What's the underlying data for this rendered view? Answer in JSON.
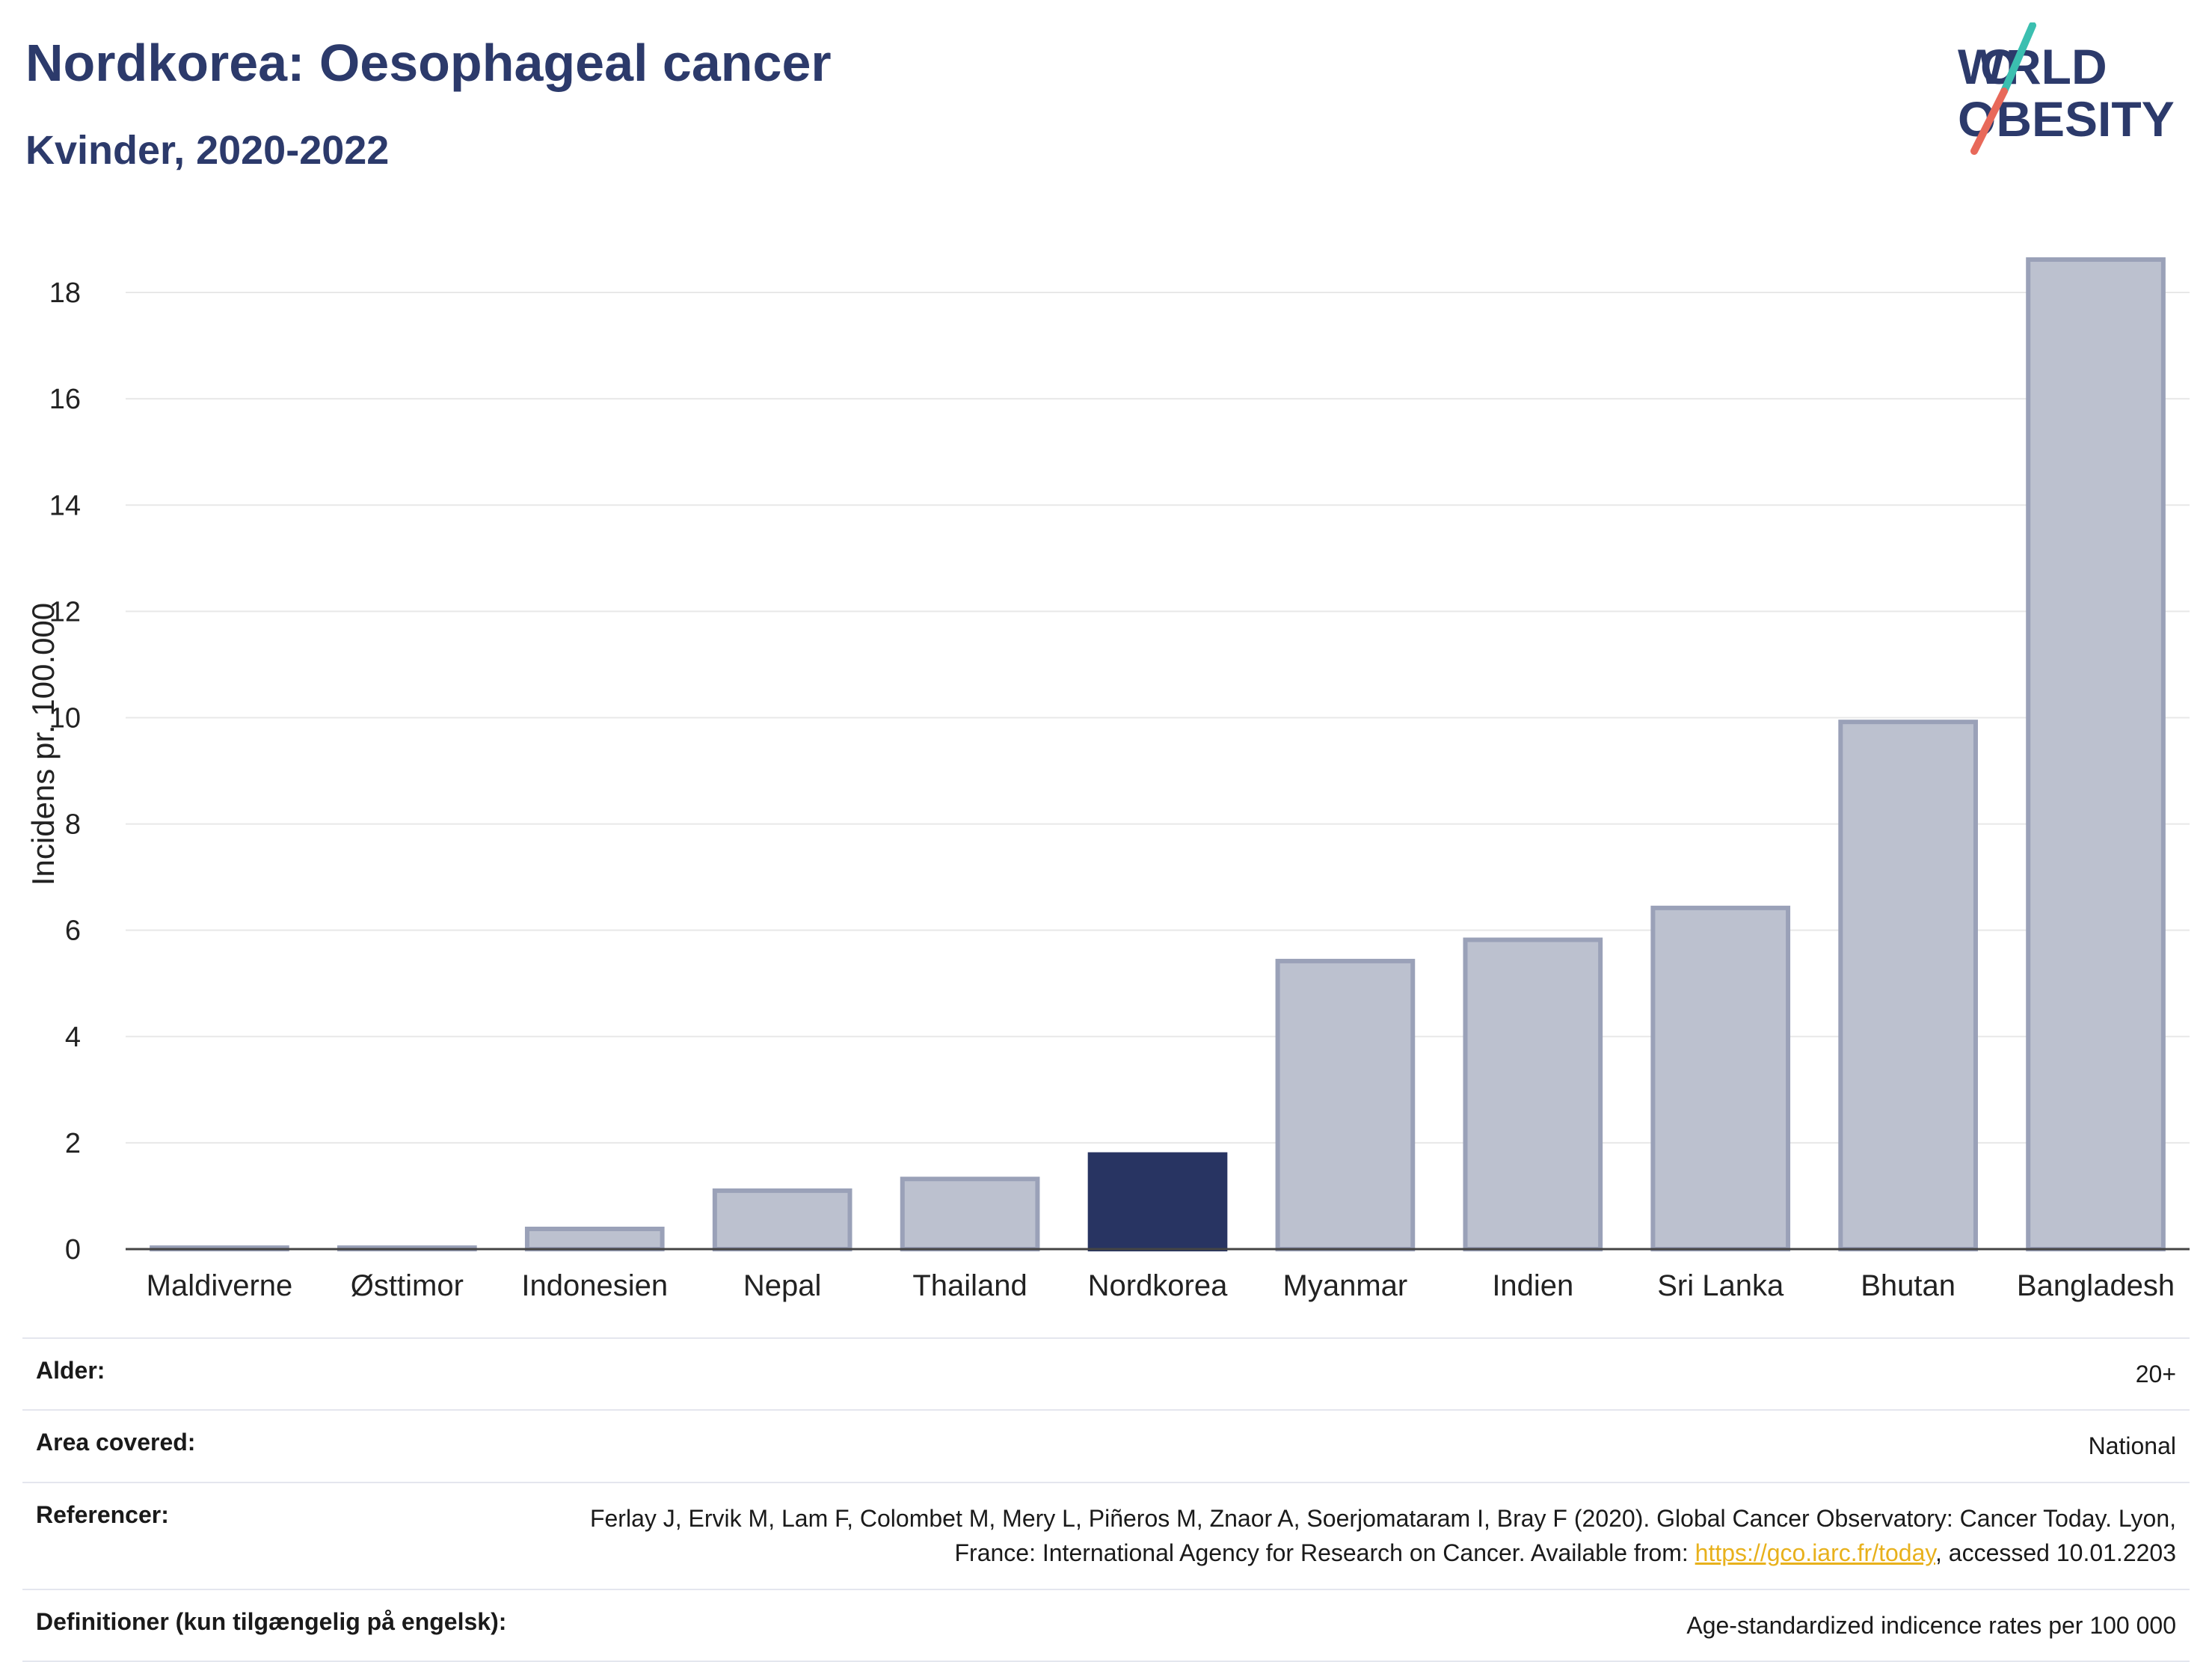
{
  "header": {
    "title": "Nordkorea: Oesophageal cancer",
    "subtitle": "Kvinder, 2020-2022"
  },
  "logo": {
    "line1": "WORLD",
    "line2": "OBESITY"
  },
  "chart_data": {
    "type": "bar",
    "ylabel": "Incidens pr. 100.000",
    "xlabel": "",
    "ylim": [
      0,
      19
    ],
    "yticks": [
      0,
      2,
      4,
      6,
      8,
      10,
      12,
      14,
      16,
      18
    ],
    "grid": true,
    "categories": [
      "Maldiverne",
      "Østtimor",
      "Indonesien",
      "Nepal",
      "Thailand",
      "Nordkorea",
      "Myanmar",
      "Indien",
      "Sri Lanka",
      "Bhutan",
      "Bangladesh"
    ],
    "values": [
      0.02,
      0.02,
      0.38,
      1.1,
      1.32,
      1.78,
      5.42,
      5.82,
      6.42,
      9.92,
      18.62
    ],
    "highlight": "Nordkorea",
    "colors": {
      "bar": "#bcc1cf",
      "bar_stroke": "#9aa1b8",
      "highlight": "#283462",
      "axis": "#444444",
      "grid": "#e8e8e8"
    }
  },
  "info": {
    "rows": [
      {
        "label": "Alder:",
        "value": "20+"
      },
      {
        "label": "Area covered:",
        "value": "National"
      },
      {
        "label": "Referencer:",
        "value_pre": "Ferlay J, Ervik M, Lam F, Colombet M, Mery L, Piñeros M, Znaor A, Soerjomataram I, Bray F (2020). Global Cancer Observatory: Cancer Today. Lyon, France: International Agency for Research on Cancer. Available from: ",
        "link": "https://gco.iarc.fr/today",
        "value_post": ", accessed 10.01.2203"
      },
      {
        "label": "Definitioner (kun tilgængelig på engelsk):",
        "value": "Age-standardized indicence rates per 100 000"
      }
    ]
  }
}
